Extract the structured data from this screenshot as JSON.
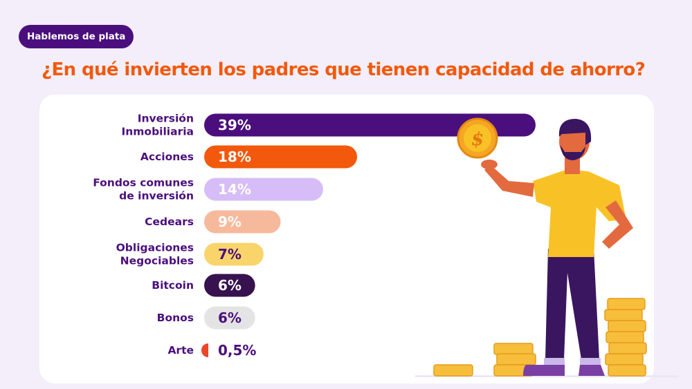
{
  "header": {
    "badge": "Hablemos de plata",
    "title": "¿En qué invierten los padres que tienen capacidad de ahorro?"
  },
  "colors": {
    "purple_dark": "#4b0f7d",
    "orange": "#f2590c",
    "lavender": "#d6bdf7",
    "peach": "#f7b99c",
    "yellow": "#f9d46b",
    "deep_purple": "#37124f",
    "gray": "#e4e4e4",
    "red_orange": "#e8472b"
  },
  "chart_data": {
    "type": "bar",
    "orientation": "horizontal",
    "title": "¿En qué invierten los padres que tienen capacidad de ahorro?",
    "categories": [
      [
        "Inversión",
        "Inmobiliaria"
      ],
      [
        "Acciones"
      ],
      [
        "Fondos comunes",
        "de inversión"
      ],
      [
        "Cedears"
      ],
      [
        "Obligaciones",
        "Negociables"
      ],
      [
        "Bitcoin"
      ],
      [
        "Bonos"
      ],
      [
        "Arte"
      ]
    ],
    "values": [
      39,
      18,
      14,
      9,
      7,
      6,
      6,
      0.5
    ],
    "labels": [
      "39%",
      "18%",
      "14%",
      "9%",
      "7%",
      "6%",
      "6%",
      "0,5%"
    ],
    "bar_colors": [
      "#4b0f7d",
      "#f2590c",
      "#d6bdf7",
      "#f7b99c",
      "#f9d46b",
      "#37124f",
      "#e4e4e4",
      "#e8472b"
    ],
    "label_colors": [
      "#ffffff",
      "#ffffff",
      "#ffffff",
      "#ffffff",
      "#4b0f7d",
      "#ffffff",
      "#4b0f7d",
      "#4b0f7d"
    ],
    "xlabel": "",
    "ylabel": "",
    "xlim": [
      0,
      39
    ],
    "grid": false,
    "legend": "none"
  },
  "illustration": {
    "icon": "man-holding-coin-illustration",
    "coin_symbol": "$"
  }
}
